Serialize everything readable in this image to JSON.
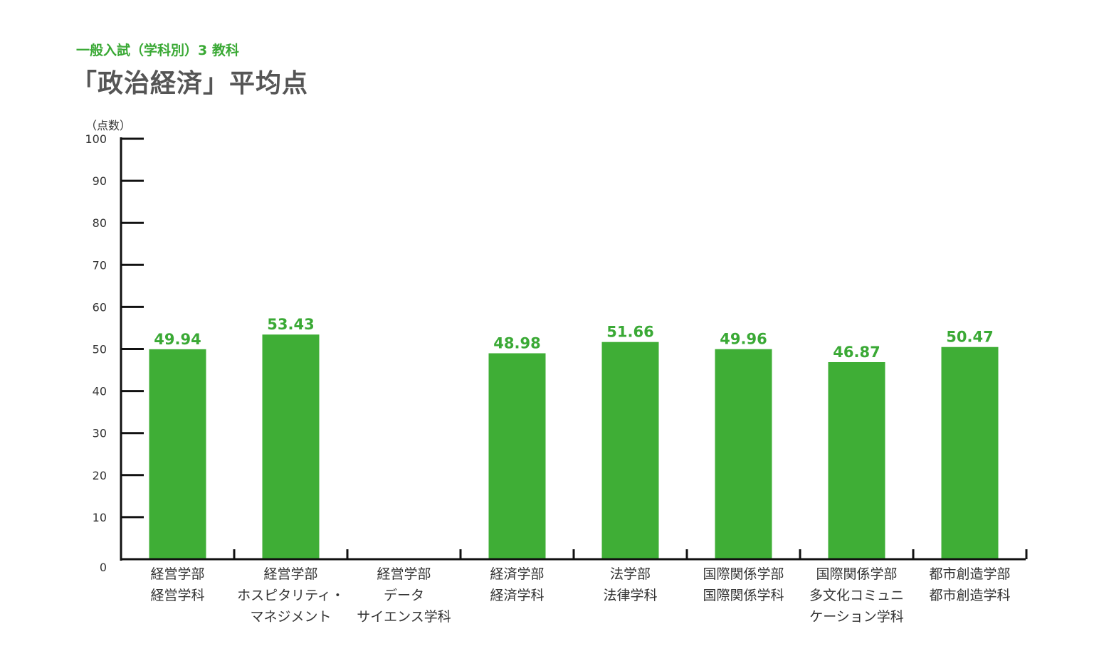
{
  "header": {
    "subtitle": "一般入試（学科別）3 教科",
    "title": "「政治経済」平均点"
  },
  "colors": {
    "bar": "#3fae36",
    "value_label": "#3aa935",
    "subtitle": "#3aa935",
    "title": "#555555",
    "axis": "#111111"
  },
  "chart_data": {
    "type": "bar",
    "title": "「政治経済」平均点",
    "subtitle": "一般入試（学科別）3 教科",
    "ylabel": "（点数）",
    "xlabel": "",
    "ylim": [
      0,
      100
    ],
    "yticks": [
      0,
      10,
      20,
      30,
      40,
      50,
      60,
      70,
      80,
      90,
      100
    ],
    "grid": false,
    "legend": "none",
    "categories": [
      [
        "経営学部",
        "経営学科"
      ],
      [
        "経営学部",
        "ホスピタリティ・",
        "マネジメント"
      ],
      [
        "経営学部",
        "データ",
        "サイエンス学科"
      ],
      [
        "経済学部",
        "経済学科"
      ],
      [
        "法学部",
        "法律学科"
      ],
      [
        "国際関係学部",
        "国際関係学科"
      ],
      [
        "国際関係学部",
        "多文化コミュニ",
        "ケーション学科"
      ],
      [
        "都市創造学部",
        "都市創造学科"
      ]
    ],
    "values": [
      49.94,
      53.43,
      null,
      48.98,
      51.66,
      49.96,
      46.87,
      50.47
    ],
    "value_labels": [
      "49.94",
      "53.43",
      "",
      "48.98",
      "51.66",
      "49.96",
      "46.87",
      "50.47"
    ]
  }
}
